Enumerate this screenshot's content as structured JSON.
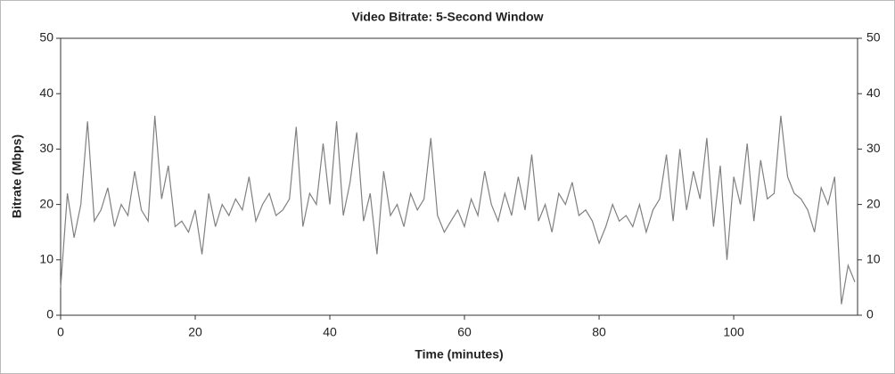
{
  "chart_data": {
    "type": "line",
    "title": "Video Bitrate: 5-Second Window",
    "x_label": "Time (minutes)",
    "y_label": "Bitrate (Mbps)",
    "x": [
      0,
      1,
      2,
      3,
      4,
      5,
      6,
      7,
      8,
      9,
      10,
      11,
      12,
      13,
      14,
      15,
      16,
      17,
      18,
      19,
      20,
      21,
      22,
      23,
      24,
      25,
      26,
      27,
      28,
      29,
      30,
      31,
      32,
      33,
      34,
      35,
      36,
      37,
      38,
      39,
      40,
      41,
      42,
      43,
      44,
      45,
      46,
      47,
      48,
      49,
      50,
      51,
      52,
      53,
      54,
      55,
      56,
      57,
      58,
      59,
      60,
      61,
      62,
      63,
      64,
      65,
      66,
      67,
      68,
      69,
      70,
      71,
      72,
      73,
      74,
      75,
      76,
      77,
      78,
      79,
      80,
      81,
      82,
      83,
      84,
      85,
      86,
      87,
      88,
      89,
      90,
      91,
      92,
      93,
      94,
      95,
      96,
      97,
      98,
      99,
      100,
      101,
      102,
      103,
      104,
      105,
      106,
      107,
      108,
      109,
      110,
      111,
      112,
      113,
      114,
      115,
      116,
      117,
      118
    ],
    "series": [
      {
        "name": "Video Bitrate",
        "color": "#808080",
        "values": [
          5,
          22,
          14,
          20,
          35,
          17,
          19,
          23,
          16,
          20,
          18,
          26,
          19,
          17,
          36,
          21,
          27,
          16,
          17,
          15,
          19,
          11,
          22,
          16,
          20,
          18,
          21,
          19,
          25,
          17,
          20,
          22,
          18,
          19,
          21,
          34,
          16,
          22,
          20,
          31,
          20,
          35,
          18,
          24,
          33,
          17,
          22,
          11,
          26,
          18,
          20,
          16,
          22,
          19,
          21,
          32,
          18,
          15,
          17,
          19,
          16,
          21,
          18,
          26,
          20,
          17,
          22,
          18,
          25,
          19,
          29,
          17,
          20,
          15,
          22,
          20,
          24,
          18,
          19,
          17,
          13,
          16,
          20,
          17,
          18,
          16,
          20,
          15,
          19,
          21,
          29,
          17,
          30,
          19,
          26,
          21,
          32,
          16,
          27,
          10,
          25,
          20,
          31,
          17,
          28,
          21,
          22,
          36,
          25,
          22,
          21,
          19,
          15,
          23,
          20,
          25,
          2,
          9,
          6
        ]
      }
    ],
    "xlim": [
      0,
      118.4
    ],
    "xticks": [
      0,
      20,
      40,
      60,
      80,
      100
    ],
    "ylim": [
      0,
      50
    ],
    "yticks": [
      0,
      10,
      20,
      30,
      40,
      50
    ],
    "y2lim": [
      0,
      50
    ],
    "y2ticks": [
      0,
      10,
      20,
      30,
      40,
      50
    ]
  }
}
